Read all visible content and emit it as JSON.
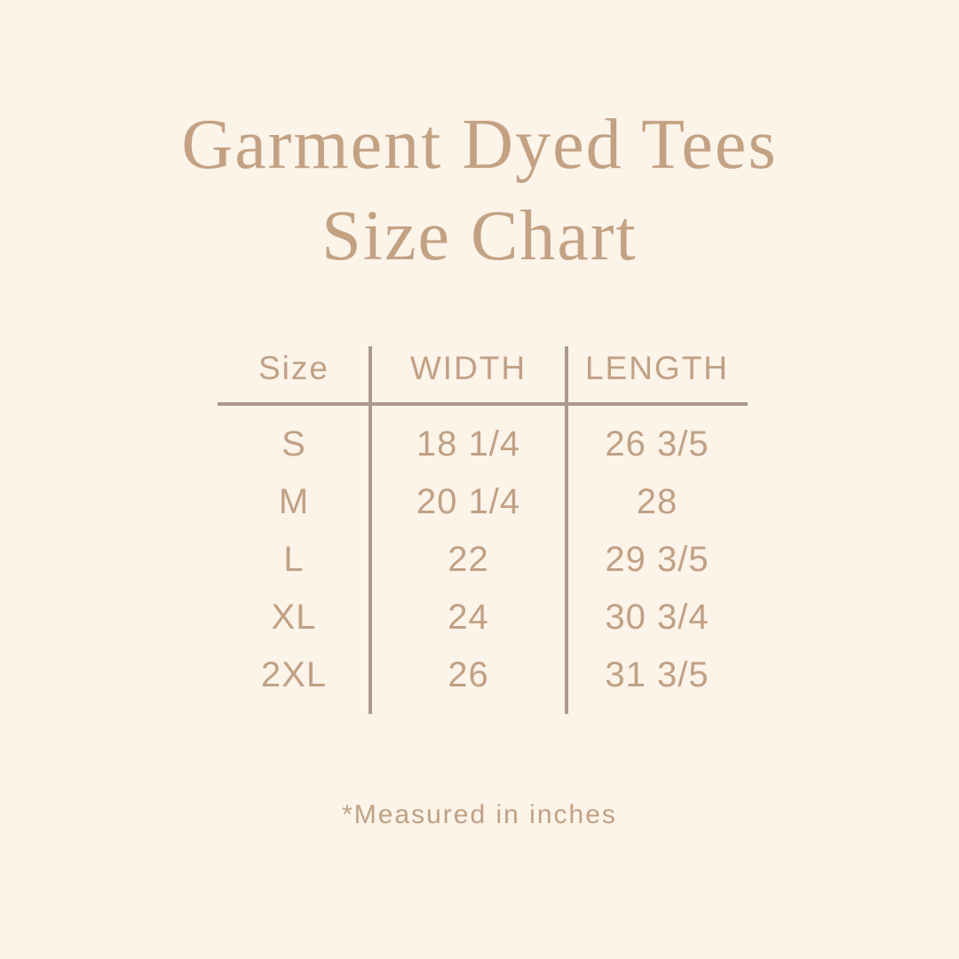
{
  "colors": {
    "background": "#fcf3e9",
    "title": "#c3a284",
    "text": "#c0a185",
    "line": "#ab9a8c"
  },
  "chart_data": {
    "type": "table",
    "title_lines": [
      "Garment Dyed Tees",
      "Size Chart"
    ],
    "columns": [
      "Size",
      "WIDTH",
      "LENGTH"
    ],
    "rows": [
      [
        "S",
        "18 1/4",
        "26 3/5"
      ],
      [
        "M",
        "20 1/4",
        "28"
      ],
      [
        "L",
        "22",
        "29 3/5"
      ],
      [
        "XL",
        "24",
        "30 3/4"
      ],
      [
        "2XL",
        "26",
        "31 3/5"
      ]
    ],
    "footnote": "*Measured in inches",
    "layout": {
      "grid": "off",
      "units": "inches"
    }
  }
}
